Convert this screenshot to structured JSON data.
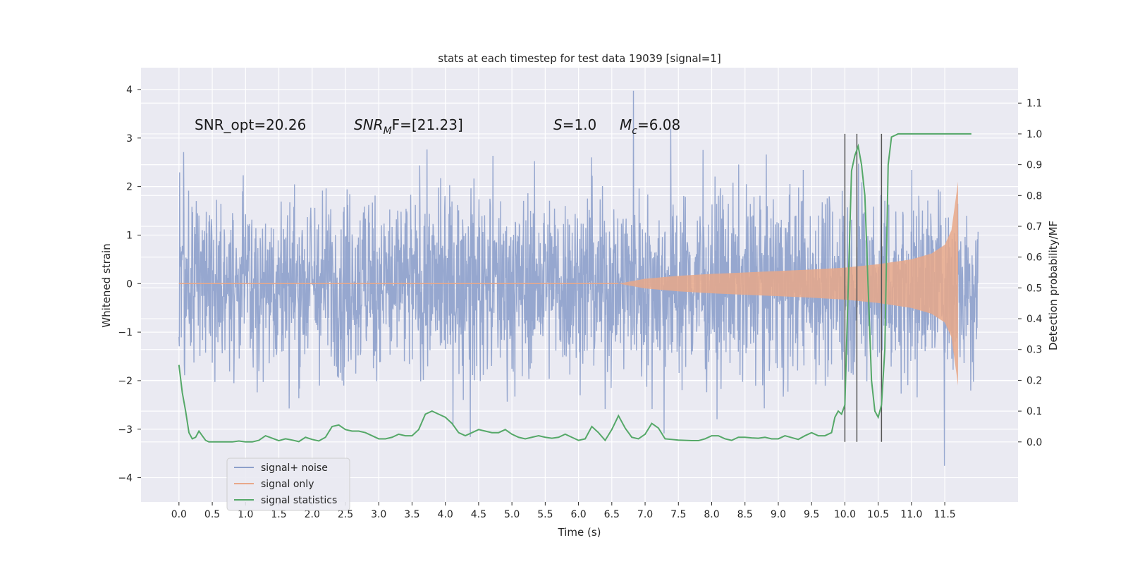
{
  "chart_data": {
    "type": "line",
    "title": "stats at each timestep for test data 19039 [signal=1]",
    "xlabel": "Time (s)",
    "ylabel": "Whitened strain",
    "y2label": "Detection probability/MF",
    "xlim": [
      -0.57,
      12.6
    ],
    "ylim": [
      -4.5,
      4.45
    ],
    "y2lim": [
      -0.195,
      1.215
    ],
    "xticks": [
      0.0,
      0.5,
      1.0,
      1.5,
      2.0,
      2.5,
      3.0,
      3.5,
      4.0,
      4.5,
      5.0,
      5.5,
      6.0,
      6.5,
      7.0,
      7.5,
      8.0,
      8.5,
      9.0,
      9.5,
      10.0,
      10.5,
      11.0,
      11.5
    ],
    "xtick_labels": [
      "0.0",
      "0.5",
      "1.0",
      "1.5",
      "2.0",
      "2.5",
      "3.0",
      "3.5",
      "4.0",
      "4.5",
      "5.0",
      "5.5",
      "6.0",
      "6.5",
      "7.0",
      "7.5",
      "8.0",
      "8.5",
      "9.0",
      "9.5",
      "10.0",
      "10.5",
      "11.0",
      "11.5"
    ],
    "yticks": [
      -4,
      -3,
      -2,
      -1,
      0,
      1,
      2,
      3,
      4
    ],
    "ytick_labels": [
      "−4",
      "−3",
      "−2",
      "−1",
      "0",
      "1",
      "2",
      "3",
      "4"
    ],
    "y2ticks": [
      0.0,
      0.1,
      0.2,
      0.3,
      0.4,
      0.5,
      0.6,
      0.7,
      0.8,
      0.9,
      1.0,
      1.1
    ],
    "y2tick_labels": [
      "0.0",
      "0.1",
      "0.2",
      "0.3",
      "0.4",
      "0.5",
      "0.6",
      "0.7",
      "0.8",
      "0.9",
      "1.0",
      "1.1"
    ],
    "grid": true,
    "legend_position": "lower-left",
    "legend": [
      "signal+ noise",
      "signal only",
      "signal statistics"
    ],
    "annotations": {
      "snr_opt": "SNR_opt=20.26",
      "snr_mf_base": "SNR",
      "snr_mf_sub": "M",
      "snr_mf_rest": "F=[21.23]",
      "s_var": "S",
      "s_rest": "=1.0",
      "mc_var": "M",
      "mc_sub": "c",
      "mc_rest": "=6.08"
    },
    "series": [
      {
        "name": "signal+ noise",
        "color": "#8da0cb",
        "description": "whitened noisy strain, roughly -2.2 to 2.3 with spikes up to 4.1 and down to -4.1, spanning t=0 to 12.0 s"
      },
      {
        "name": "signal only",
        "color": "#e8a88a",
        "envelope_t": [
          6.6,
          7.0,
          7.5,
          8.0,
          8.5,
          9.0,
          9.5,
          10.0,
          10.5,
          11.0,
          11.3,
          11.5,
          11.6,
          11.65,
          11.7
        ],
        "envelope_amp": [
          0.0,
          0.1,
          0.16,
          0.2,
          0.23,
          0.26,
          0.29,
          0.33,
          0.4,
          0.5,
          0.62,
          0.8,
          1.1,
          1.6,
          2.1
        ]
      },
      {
        "name": "signal statistics",
        "color": "#55a868",
        "x": [
          0.0,
          0.05,
          0.1,
          0.15,
          0.2,
          0.25,
          0.3,
          0.35,
          0.4,
          0.45,
          0.5,
          0.6,
          0.7,
          0.8,
          0.9,
          1.0,
          1.1,
          1.2,
          1.3,
          1.4,
          1.5,
          1.6,
          1.7,
          1.8,
          1.9,
          2.0,
          2.1,
          2.2,
          2.3,
          2.4,
          2.5,
          2.6,
          2.7,
          2.8,
          2.9,
          3.0,
          3.1,
          3.2,
          3.3,
          3.4,
          3.5,
          3.6,
          3.7,
          3.8,
          3.9,
          4.0,
          4.1,
          4.2,
          4.3,
          4.4,
          4.5,
          4.6,
          4.7,
          4.8,
          4.9,
          5.0,
          5.1,
          5.2,
          5.3,
          5.4,
          5.5,
          5.6,
          5.7,
          5.8,
          5.9,
          6.0,
          6.1,
          6.2,
          6.3,
          6.4,
          6.5,
          6.6,
          6.7,
          6.8,
          6.9,
          7.0,
          7.1,
          7.2,
          7.3,
          7.4,
          7.5,
          7.6,
          7.7,
          7.8,
          7.9,
          8.0,
          8.1,
          8.2,
          8.3,
          8.4,
          8.5,
          8.6,
          8.7,
          8.8,
          8.9,
          9.0,
          9.1,
          9.2,
          9.3,
          9.4,
          9.5,
          9.6,
          9.7,
          9.8,
          9.85,
          9.9,
          9.95,
          10.0,
          10.05,
          10.1,
          10.15,
          10.2,
          10.25,
          10.3,
          10.35,
          10.4,
          10.45,
          10.5,
          10.55,
          10.6,
          10.65,
          10.7,
          10.8,
          11.0,
          11.5,
          11.9
        ],
        "y": [
          0.25,
          0.16,
          0.1,
          0.03,
          0.01,
          0.015,
          0.035,
          0.02,
          0.005,
          0.0,
          0.0,
          0.0,
          0.0,
          0.0,
          0.003,
          0.0,
          0.0,
          0.005,
          0.02,
          0.012,
          0.004,
          0.01,
          0.006,
          0.001,
          0.015,
          0.008,
          0.003,
          0.015,
          0.05,
          0.055,
          0.04,
          0.035,
          0.035,
          0.03,
          0.02,
          0.01,
          0.01,
          0.015,
          0.025,
          0.02,
          0.02,
          0.04,
          0.09,
          0.1,
          0.09,
          0.08,
          0.06,
          0.03,
          0.02,
          0.03,
          0.04,
          0.035,
          0.03,
          0.03,
          0.04,
          0.025,
          0.015,
          0.01,
          0.015,
          0.02,
          0.015,
          0.012,
          0.015,
          0.025,
          0.015,
          0.005,
          0.01,
          0.05,
          0.03,
          0.005,
          0.04,
          0.085,
          0.045,
          0.015,
          0.01,
          0.025,
          0.06,
          0.045,
          0.01,
          0.008,
          0.006,
          0.005,
          0.004,
          0.004,
          0.01,
          0.02,
          0.02,
          0.01,
          0.005,
          0.015,
          0.015,
          0.013,
          0.012,
          0.015,
          0.01,
          0.01,
          0.02,
          0.014,
          0.008,
          0.02,
          0.03,
          0.02,
          0.02,
          0.03,
          0.08,
          0.1,
          0.09,
          0.12,
          0.5,
          0.88,
          0.93,
          0.96,
          0.9,
          0.8,
          0.5,
          0.2,
          0.1,
          0.08,
          0.12,
          0.3,
          0.9,
          0.99,
          1.0,
          1.0,
          1.0,
          1.0
        ],
        "vlines": [
          10.0,
          10.18,
          10.55
        ],
        "vlines_color": "#555555"
      }
    ]
  }
}
